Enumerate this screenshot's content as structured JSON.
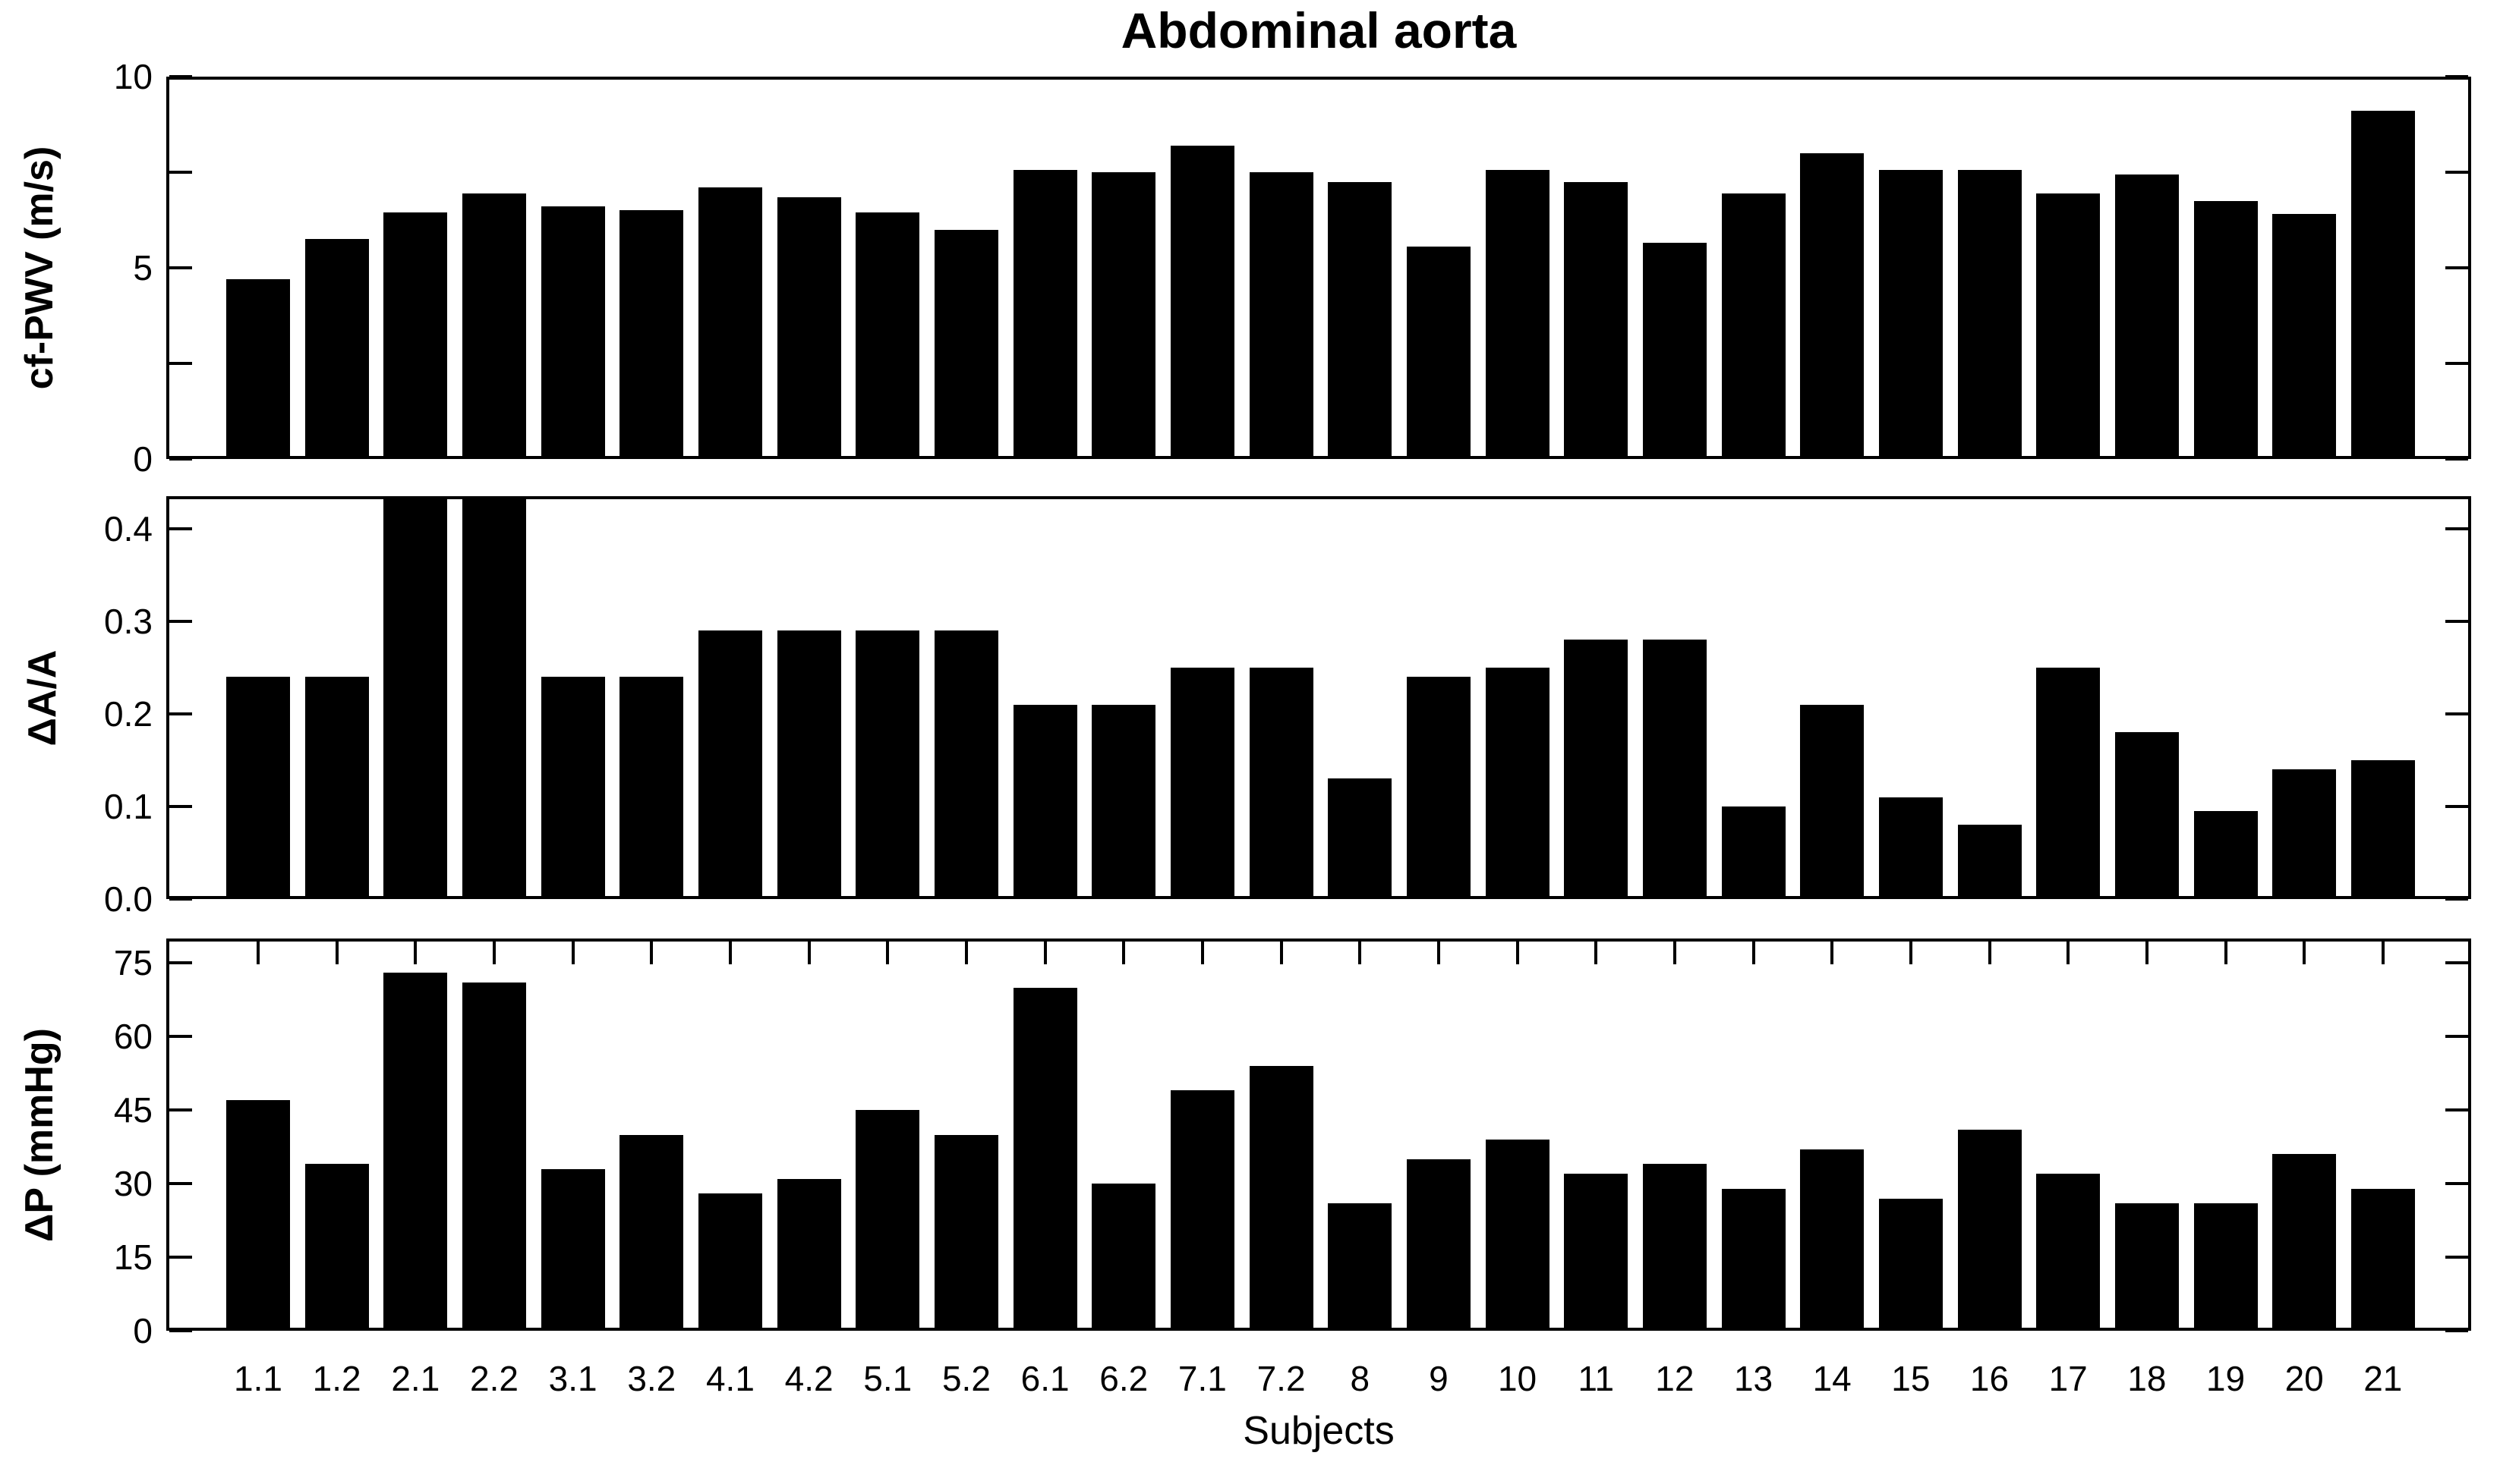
{
  "title": "Abdominal aorta",
  "chart_data": {
    "type": "bar",
    "title": "Abdominal aorta",
    "xlabel": "Subjects",
    "bar_color": "#000000",
    "background_color": "#ffffff",
    "grid": false,
    "legend": false,
    "categories": [
      "1.1",
      "1.2",
      "2.1",
      "2.2",
      "3.1",
      "3.2",
      "4.1",
      "4.2",
      "5.1",
      "5.2",
      "6.1",
      "6.2",
      "7.1",
      "7.2",
      "8",
      "9",
      "10",
      "11",
      "12",
      "13",
      "14",
      "15",
      "16",
      "17",
      "18",
      "19",
      "20",
      "21"
    ],
    "subplots": [
      {
        "ylabel": "cf-PWV (m/s)",
        "ylim": [
          0,
          10
        ],
        "yticks": [
          0,
          5,
          10
        ],
        "ytick_labels": [
          "0",
          "5",
          "10"
        ],
        "minor_yticks": [
          2.5,
          7.5
        ],
        "values": [
          4.7,
          5.75,
          6.45,
          6.95,
          6.6,
          6.5,
          7.1,
          6.85,
          6.45,
          6.0,
          7.55,
          7.5,
          8.2,
          7.5,
          7.25,
          5.55,
          7.55,
          7.25,
          5.65,
          6.95,
          8.0,
          7.55,
          7.55,
          6.95,
          7.45,
          6.75,
          6.4,
          9.1
        ]
      },
      {
        "ylabel": "ΔA/A",
        "ylim": [
          0,
          0.435
        ],
        "yticks": [
          0,
          0.1,
          0.2,
          0.3,
          0.4
        ],
        "ytick_labels": [
          "0.0",
          "0.1",
          "0.2",
          "0.3",
          "0.4"
        ],
        "minor_yticks": [],
        "values": [
          0.24,
          0.24,
          0.44,
          0.44,
          0.24,
          0.24,
          0.29,
          0.29,
          0.29,
          0.29,
          0.21,
          0.21,
          0.25,
          0.25,
          0.13,
          0.24,
          0.25,
          0.28,
          0.28,
          0.1,
          0.21,
          0.11,
          0.08,
          0.25,
          0.18,
          0.095,
          0.14,
          0.15
        ]
      },
      {
        "ylabel": "ΔP (mmHg)",
        "ylim": [
          0,
          80
        ],
        "yticks": [
          0,
          15,
          30,
          45,
          60,
          75
        ],
        "ytick_labels": [
          "0",
          "15",
          "30",
          "45",
          "60",
          "75"
        ],
        "minor_yticks": [],
        "values": [
          47,
          34,
          73,
          71,
          33,
          40,
          28,
          31,
          45,
          40,
          70,
          30,
          49,
          54,
          26,
          35,
          39,
          32,
          34,
          29,
          37,
          27,
          41,
          32,
          26,
          26,
          36,
          29
        ]
      }
    ]
  }
}
